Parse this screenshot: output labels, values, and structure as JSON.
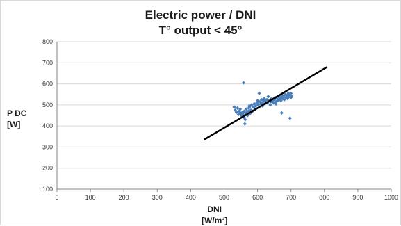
{
  "chart_data": {
    "type": "scatter",
    "title": "Electric power / DNI",
    "subtitle": "T° output < 45°",
    "ylabel_line1": "P DC",
    "ylabel_line2": "[W]",
    "xlabel_line1": "DNI",
    "xlabel_line2": "[W/m²]",
    "xlim": [
      0,
      1000
    ],
    "ylim": [
      100,
      800
    ],
    "x_ticks": [
      "0",
      "100",
      "200",
      "300",
      "400",
      "500",
      "600",
      "700",
      "800",
      "900",
      "1000"
    ],
    "y_ticks": [
      "100",
      "200",
      "300",
      "400",
      "500",
      "600",
      "700",
      "800"
    ],
    "grid": "horizontal",
    "marker_color": "#4a7ebb",
    "trend_color": "#000000",
    "trendline": {
      "x": [
        440,
        808
      ],
      "y": [
        335,
        680
      ]
    },
    "points": [
      {
        "x": 530,
        "y": 490
      },
      {
        "x": 533,
        "y": 475
      },
      {
        "x": 537,
        "y": 465
      },
      {
        "x": 540,
        "y": 485
      },
      {
        "x": 543,
        "y": 455
      },
      {
        "x": 545,
        "y": 470
      },
      {
        "x": 548,
        "y": 480
      },
      {
        "x": 550,
        "y": 460
      },
      {
        "x": 552,
        "y": 448
      },
      {
        "x": 555,
        "y": 465
      },
      {
        "x": 557,
        "y": 455
      },
      {
        "x": 558,
        "y": 605
      },
      {
        "x": 560,
        "y": 440
      },
      {
        "x": 560,
        "y": 470
      },
      {
        "x": 562,
        "y": 410
      },
      {
        "x": 563,
        "y": 430
      },
      {
        "x": 565,
        "y": 455
      },
      {
        "x": 566,
        "y": 480
      },
      {
        "x": 568,
        "y": 465
      },
      {
        "x": 570,
        "y": 450
      },
      {
        "x": 572,
        "y": 470
      },
      {
        "x": 574,
        "y": 485
      },
      {
        "x": 576,
        "y": 490
      },
      {
        "x": 578,
        "y": 460
      },
      {
        "x": 580,
        "y": 475
      },
      {
        "x": 582,
        "y": 500
      },
      {
        "x": 585,
        "y": 470
      },
      {
        "x": 588,
        "y": 490
      },
      {
        "x": 590,
        "y": 505
      },
      {
        "x": 593,
        "y": 480
      },
      {
        "x": 595,
        "y": 495
      },
      {
        "x": 598,
        "y": 510
      },
      {
        "x": 600,
        "y": 520
      },
      {
        "x": 602,
        "y": 500
      },
      {
        "x": 605,
        "y": 555
      },
      {
        "x": 607,
        "y": 515
      },
      {
        "x": 610,
        "y": 505
      },
      {
        "x": 612,
        "y": 525
      },
      {
        "x": 615,
        "y": 510
      },
      {
        "x": 618,
        "y": 520
      },
      {
        "x": 620,
        "y": 530
      },
      {
        "x": 622,
        "y": 505
      },
      {
        "x": 625,
        "y": 515
      },
      {
        "x": 628,
        "y": 525
      },
      {
        "x": 630,
        "y": 510
      },
      {
        "x": 632,
        "y": 540
      },
      {
        "x": 635,
        "y": 520
      },
      {
        "x": 638,
        "y": 500
      },
      {
        "x": 640,
        "y": 515
      },
      {
        "x": 642,
        "y": 530
      },
      {
        "x": 645,
        "y": 520
      },
      {
        "x": 648,
        "y": 510
      },
      {
        "x": 650,
        "y": 525
      },
      {
        "x": 652,
        "y": 535
      },
      {
        "x": 655,
        "y": 515
      },
      {
        "x": 658,
        "y": 530
      },
      {
        "x": 660,
        "y": 520
      },
      {
        "x": 662,
        "y": 540
      },
      {
        "x": 665,
        "y": 525
      },
      {
        "x": 668,
        "y": 535
      },
      {
        "x": 670,
        "y": 520
      },
      {
        "x": 672,
        "y": 462
      },
      {
        "x": 673,
        "y": 545
      },
      {
        "x": 675,
        "y": 530
      },
      {
        "x": 678,
        "y": 540
      },
      {
        "x": 680,
        "y": 525
      },
      {
        "x": 682,
        "y": 550
      },
      {
        "x": 685,
        "y": 535
      },
      {
        "x": 688,
        "y": 545
      },
      {
        "x": 690,
        "y": 530
      },
      {
        "x": 692,
        "y": 555
      },
      {
        "x": 694,
        "y": 540
      },
      {
        "x": 695,
        "y": 550
      },
      {
        "x": 697,
        "y": 437
      },
      {
        "x": 698,
        "y": 545
      },
      {
        "x": 700,
        "y": 535
      },
      {
        "x": 700,
        "y": 555
      },
      {
        "x": 702,
        "y": 540
      },
      {
        "x": 575,
        "y": 495
      },
      {
        "x": 615,
        "y": 495
      },
      {
        "x": 655,
        "y": 505
      }
    ]
  }
}
